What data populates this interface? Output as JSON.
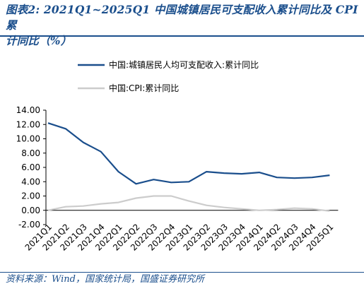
{
  "title_line1": "图表2:  2021Q1~2025Q1 中国城镇居民可支配收入累计同比及 CPI 累",
  "title_line2": "计同比（%）",
  "source": "资料来源：Wind，国家统计局，国盛证券研究所",
  "chart_data": {
    "type": "line",
    "title": "图表2:  2021Q1~2025Q1 中国城镇居民可支配收入累计同比及 CPI 累计同比（%）",
    "xlabel": "",
    "ylabel": "",
    "categories": [
      "2021Q1",
      "2021Q2",
      "2021Q3",
      "2021Q4",
      "2022Q1",
      "2022Q2",
      "2022Q3",
      "2022Q4",
      "2023Q1",
      "2023Q2",
      "2023Q3",
      "2023Q4",
      "2024Q1",
      "2024Q2",
      "2024Q3",
      "2024Q4",
      "2025Q1"
    ],
    "ylim": [
      -2,
      14
    ],
    "yticks": [
      "14.00",
      "12.00",
      "10.00",
      "8.00",
      "6.00",
      "4.00",
      "2.00",
      "0.00",
      "-2.00"
    ],
    "grid": false,
    "legend_position": "top",
    "series": [
      {
        "name": "中国:城镇居民人均可支配收入:累计同比",
        "color": "#1a4e8c",
        "values": [
          12.2,
          11.4,
          9.5,
          8.2,
          5.4,
          3.7,
          4.3,
          3.9,
          4.0,
          5.4,
          5.2,
          5.1,
          5.3,
          4.6,
          4.5,
          4.6,
          4.9
        ]
      },
      {
        "name": "中国:CPI:累计同比",
        "color": "#cccccc",
        "values": [
          0.0,
          0.5,
          0.6,
          0.9,
          1.1,
          1.7,
          2.0,
          2.0,
          1.3,
          0.7,
          0.4,
          0.2,
          0.0,
          0.1,
          0.3,
          0.2,
          -0.1
        ]
      }
    ]
  }
}
